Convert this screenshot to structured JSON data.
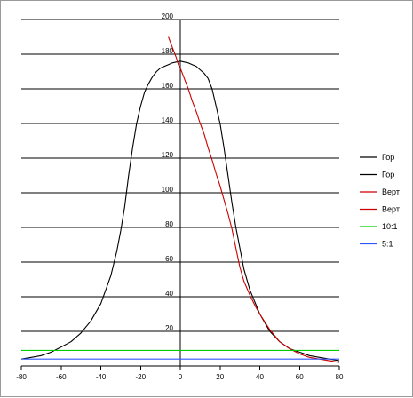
{
  "chart_data": {
    "type": "line",
    "title": "",
    "xlabel": "",
    "ylabel": "",
    "xlim": [
      -80,
      80
    ],
    "ylim": [
      0,
      200
    ],
    "x_ticks": [
      -80,
      -60,
      -40,
      -20,
      0,
      20,
      40,
      60,
      80
    ],
    "y_ticks": [
      20,
      40,
      60,
      80,
      100,
      120,
      140,
      160,
      180,
      200
    ],
    "x_tick_labels": [
      "-80",
      "-60",
      "-40",
      "-20",
      "0",
      "20",
      "40",
      "60",
      "80"
    ],
    "y_tick_labels": [
      "20",
      "40",
      "60",
      "80",
      "100",
      "120",
      "140",
      "160",
      "180",
      "200"
    ],
    "horizontal_grid": true,
    "vertical_grid": false,
    "legend_position": "right",
    "series": [
      {
        "name": "Гор",
        "color": "#000000",
        "x": [
          -80,
          -75,
          -70,
          -65,
          -60,
          -55,
          -50,
          -45,
          -40,
          -35,
          -32,
          -30,
          -28,
          -26,
          -24,
          -22,
          -20,
          -18,
          -16,
          -14,
          -12,
          -10,
          -8,
          -6,
          -4,
          -2,
          0
        ],
        "y": [
          4,
          5,
          6,
          8,
          11,
          14,
          19,
          26,
          36,
          52,
          66,
          78,
          92,
          110,
          126,
          140,
          150,
          158,
          163,
          167,
          170,
          172,
          173,
          174,
          175,
          175.5,
          176
        ]
      },
      {
        "name": "Гор",
        "color": "#000000",
        "x": [
          0,
          2,
          4,
          6,
          8,
          10,
          12,
          14,
          16,
          18,
          20,
          22,
          24,
          26,
          28,
          30,
          32,
          35,
          40,
          45,
          50,
          55,
          60,
          65,
          70,
          75,
          80
        ],
        "y": [
          176,
          175.5,
          175,
          174,
          173,
          171,
          169,
          166,
          160,
          150,
          140,
          126,
          110,
          94,
          80,
          68,
          56,
          44,
          30,
          20,
          14,
          10,
          8,
          6,
          5,
          4,
          3
        ]
      },
      {
        "name": "Верт",
        "color": "#cc0000",
        "x": [
          -6,
          -5,
          -4,
          -3,
          -2,
          -1,
          0
        ],
        "y": [
          190,
          187,
          184,
          181,
          178,
          174,
          172
        ]
      },
      {
        "name": "Верт",
        "color": "#cc0000",
        "x": [
          0,
          2,
          4,
          6,
          8,
          10,
          12,
          14,
          16,
          18,
          20,
          22,
          24,
          26,
          28,
          30,
          32,
          35,
          38,
          40,
          45,
          50,
          55,
          60,
          65,
          70,
          75,
          80
        ],
        "y": [
          172,
          166,
          160,
          153,
          147,
          140,
          134,
          126,
          119,
          111,
          104,
          96,
          88,
          79,
          68,
          57,
          49,
          41,
          34,
          30,
          21,
          14,
          10,
          7,
          5,
          4,
          3,
          2
        ]
      },
      {
        "name": "10:1",
        "color": "#00cc00",
        "x": [
          -80,
          80
        ],
        "y": [
          9,
          9
        ]
      },
      {
        "name": "5:1",
        "color": "#3355ff",
        "x": [
          -80,
          80
        ],
        "y": [
          4,
          4
        ]
      }
    ]
  }
}
